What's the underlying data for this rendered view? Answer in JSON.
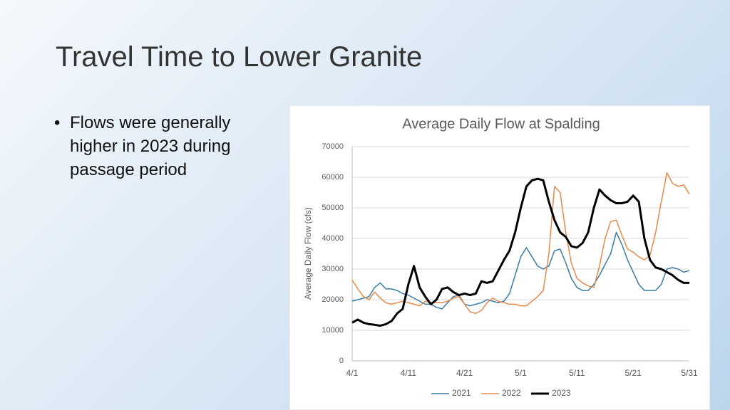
{
  "slide": {
    "title": "Travel Time to Lower Granite",
    "bullets": [
      "Flows were generally higher in 2023 during passage period"
    ]
  },
  "chart_data": {
    "type": "line",
    "title": "Average Daily Flow at Spalding",
    "y_label": "Average Daily Flow (cfs)",
    "categories": [
      "4/1",
      null,
      null,
      null,
      null,
      null,
      null,
      null,
      null,
      null,
      "4/11",
      null,
      null,
      null,
      null,
      null,
      null,
      null,
      null,
      null,
      "4/21",
      null,
      null,
      null,
      null,
      null,
      null,
      null,
      null,
      null,
      "5/1",
      null,
      null,
      null,
      null,
      null,
      null,
      null,
      null,
      null,
      "5/11",
      null,
      null,
      null,
      null,
      null,
      null,
      null,
      null,
      null,
      "5/21",
      null,
      null,
      null,
      null,
      null,
      null,
      null,
      null,
      null,
      "5/31"
    ],
    "ylim": [
      0,
      70000
    ],
    "yticks": [
      0,
      10000,
      20000,
      30000,
      40000,
      50000,
      60000,
      70000
    ],
    "grid": true,
    "legend": "bottom",
    "series": [
      {
        "name": "2021",
        "color": "#3a7ca5",
        "width": 1.5,
        "values": [
          19500,
          20000,
          20500,
          21000,
          24000,
          25500,
          23500,
          23500,
          23000,
          22000,
          21500,
          20500,
          19500,
          18500,
          18500,
          17500,
          17000,
          19000,
          21000,
          21500,
          18500,
          18000,
          18500,
          19000,
          20000,
          19500,
          19000,
          19500,
          22000,
          28000,
          34000,
          37000,
          34000,
          31000,
          30000,
          31000,
          36000,
          36500,
          32000,
          27000,
          24000,
          23000,
          23000,
          25000,
          28000,
          31500,
          35000,
          42000,
          38000,
          33000,
          29000,
          25000,
          23000,
          23000,
          23000,
          25000,
          30000,
          30500,
          30000,
          29000,
          29500
        ]
      },
      {
        "name": "2022",
        "color": "#e8894a",
        "width": 1.5,
        "values": [
          26500,
          23500,
          21000,
          20000,
          22500,
          20500,
          19000,
          18500,
          19000,
          19500,
          19000,
          18500,
          18000,
          19500,
          19000,
          19000,
          19000,
          19500,
          20500,
          21000,
          18500,
          16000,
          15500,
          16500,
          19000,
          20500,
          19500,
          19000,
          18500,
          18500,
          18000,
          18000,
          19500,
          21000,
          23000,
          35000,
          57000,
          55000,
          42000,
          32000,
          27000,
          25500,
          24500,
          24000,
          31000,
          40000,
          45500,
          46000,
          41000,
          36500,
          35500,
          34000,
          33000,
          34500,
          42000,
          52000,
          61500,
          58000,
          57000,
          57500,
          54500
        ]
      },
      {
        "name": "2023",
        "color": "#000000",
        "width": 3,
        "values": [
          12500,
          13500,
          12500,
          12000,
          11800,
          11500,
          12000,
          13000,
          15500,
          17000,
          25000,
          31000,
          24000,
          21000,
          18500,
          20000,
          23500,
          24000,
          22500,
          21500,
          22000,
          21500,
          22000,
          26000,
          25500,
          26000,
          29500,
          33000,
          36000,
          42000,
          50000,
          57000,
          59000,
          59500,
          59000,
          52000,
          46000,
          42000,
          40500,
          37500,
          37000,
          38500,
          42000,
          50000,
          56000,
          54000,
          52500,
          51500,
          51500,
          52000,
          54000,
          52000,
          40000,
          33000,
          30500,
          30000,
          29000,
          28000,
          26500,
          25500,
          25500
        ]
      }
    ]
  }
}
